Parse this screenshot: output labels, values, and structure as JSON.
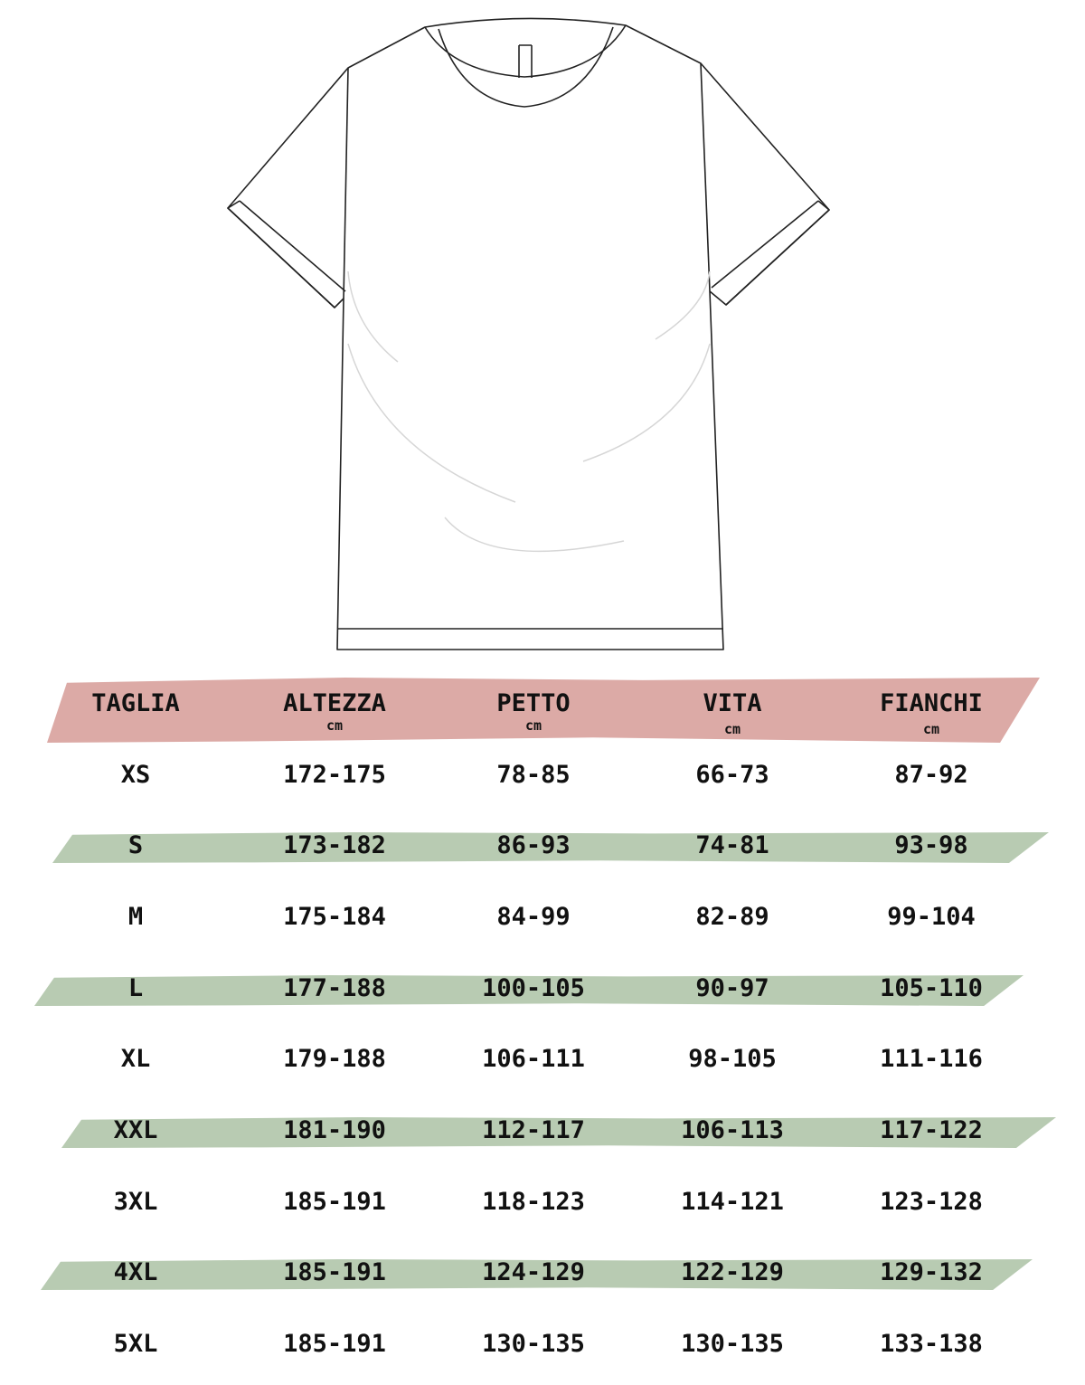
{
  "colors": {
    "header_band": "#dcaaa6",
    "row_band": "#b8cbb2",
    "text": "#111111",
    "outline": "#222222"
  },
  "illustration": "t-shirt-outline",
  "table": {
    "headers": [
      {
        "label": "TAGLIA",
        "unit": ""
      },
      {
        "label": "ALTEZZA",
        "unit": "cm"
      },
      {
        "label": "PETTO",
        "unit": "cm"
      },
      {
        "label": "VITA",
        "unit": "cm"
      },
      {
        "label": "FIANCHI",
        "unit": "cm"
      }
    ],
    "rows": [
      [
        "XS",
        "172-175",
        "78-85",
        "66-73",
        "87-92"
      ],
      [
        "S",
        "173-182",
        "86-93",
        "74-81",
        "93-98"
      ],
      [
        "M",
        "175-184",
        "84-99",
        "82-89",
        "99-104"
      ],
      [
        "L",
        "177-188",
        "100-105",
        "90-97",
        "105-110"
      ],
      [
        "XL",
        "179-188",
        "106-111",
        "98-105",
        "111-116"
      ],
      [
        "XXL",
        "181-190",
        "112-117",
        "106-113",
        "117-122"
      ],
      [
        "3XL",
        "185-191",
        "118-123",
        "114-121",
        "123-128"
      ],
      [
        "4XL",
        "185-191",
        "124-129",
        "122-129",
        "129-132"
      ],
      [
        "5XL",
        "185-191",
        "130-135",
        "130-135",
        "133-138"
      ]
    ]
  }
}
